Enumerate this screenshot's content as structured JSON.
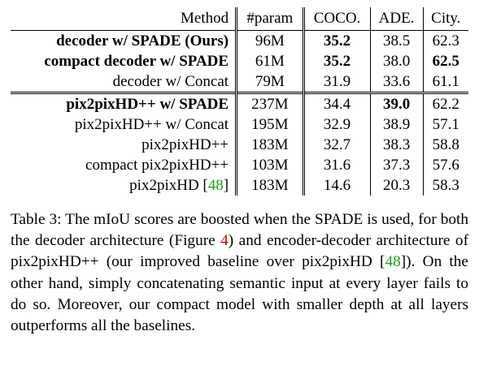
{
  "table": {
    "headers": [
      "Method",
      "#param",
      "COCO.",
      "ADE.",
      "City."
    ],
    "rows": [
      {
        "method": "decoder w/ SPADE (Ours)",
        "method_bold": true,
        "param": "96M",
        "coco": "35.2",
        "coco_bold": true,
        "ade": "38.5",
        "ade_bold": false,
        "city": "62.3",
        "city_bold": false
      },
      {
        "method": "compact decoder w/ SPADE",
        "method_bold": true,
        "param": "61M",
        "coco": "35.2",
        "coco_bold": true,
        "ade": "38.0",
        "ade_bold": false,
        "city": "62.5",
        "city_bold": true
      },
      {
        "method": "decoder w/ Concat",
        "method_bold": false,
        "param": "79M",
        "coco": "31.9",
        "coco_bold": false,
        "ade": "33.6",
        "ade_bold": false,
        "city": "61.1",
        "city_bold": false
      },
      {
        "method": "pix2pixHD++ w/ SPADE",
        "method_bold": true,
        "param": "237M",
        "coco": "34.4",
        "coco_bold": false,
        "ade": "39.0",
        "ade_bold": true,
        "city": "62.2",
        "city_bold": false
      },
      {
        "method": "pix2pixHD++ w/ Concat",
        "method_bold": false,
        "param": "195M",
        "coco": "32.9",
        "coco_bold": false,
        "ade": "38.9",
        "ade_bold": false,
        "city": "57.1",
        "city_bold": false
      },
      {
        "method": "pix2pixHD++",
        "method_bold": false,
        "param": "183M",
        "coco": "32.7",
        "coco_bold": false,
        "ade": "38.3",
        "ade_bold": false,
        "city": "58.8",
        "city_bold": false
      },
      {
        "method": "compact pix2pixHD++",
        "method_bold": false,
        "param": "103M",
        "coco": "31.6",
        "coco_bold": false,
        "ade": "37.3",
        "ade_bold": false,
        "city": "57.6",
        "city_bold": false
      },
      {
        "method": "pix2pixHD",
        "method_cite": "48",
        "method_bold": false,
        "param": "183M",
        "coco": "14.6",
        "coco_bold": false,
        "ade": "20.3",
        "ade_bold": false,
        "city": "58.3",
        "city_bold": false
      }
    ]
  },
  "caption": {
    "label": "Table 3:",
    "part1": " The mIoU scores are boosted when the SPADE is used, for both the decoder architecture (Figure ",
    "figure_ref": "4",
    "part2": ") and encoder-decoder architecture of pix2pixHD++ (our improved baseline over pix2pixHD [",
    "cite": "48",
    "part3": "]). On the other hand, simply concatenating semantic input at every layer fails to do so. Moreover, our compact model with smaller depth at all layers outperforms all the baselines."
  }
}
